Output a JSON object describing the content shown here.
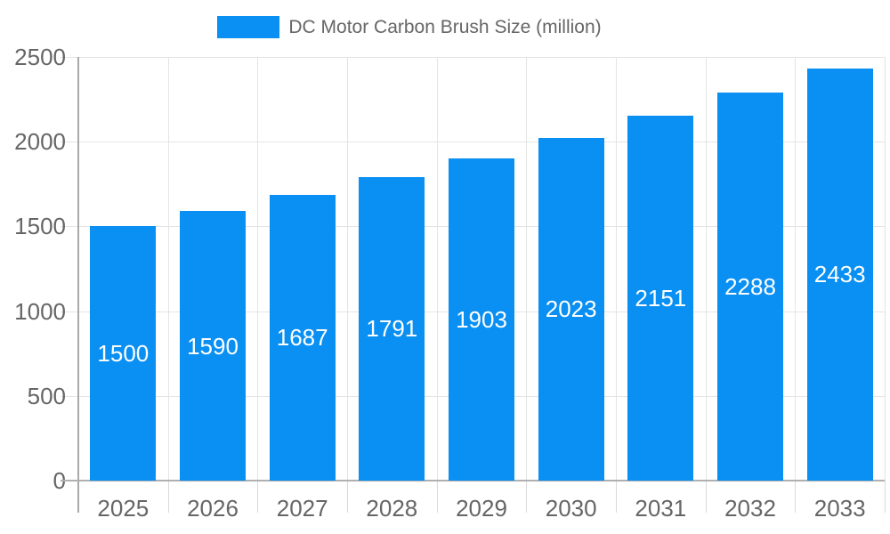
{
  "legend": {
    "label": "DC Motor Carbon Brush Size (million)"
  },
  "colors": {
    "bar": "#0a8ff2",
    "value_label": "#ffffff",
    "axis_text": "#666666",
    "axis_line": "#a9a9a9",
    "gridline": "#e4e4e4",
    "background": "#ffffff"
  },
  "chart_data": {
    "type": "bar",
    "title": "DC Motor Carbon Brush Size (million)",
    "series_name": "DC Motor Carbon Brush Size (million)",
    "categories": [
      "2025",
      "2026",
      "2027",
      "2028",
      "2029",
      "2030",
      "2031",
      "2032",
      "2033"
    ],
    "values": [
      1500,
      1590,
      1687,
      1791,
      1903,
      2023,
      2151,
      2288,
      2433
    ],
    "xlabel": "",
    "ylabel": "",
    "ylim": [
      0,
      2500
    ],
    "yticks": [
      0,
      500,
      1000,
      1500,
      2000,
      2500
    ],
    "grid": true,
    "legend_position": "top-center",
    "value_labels": "inside-center"
  }
}
